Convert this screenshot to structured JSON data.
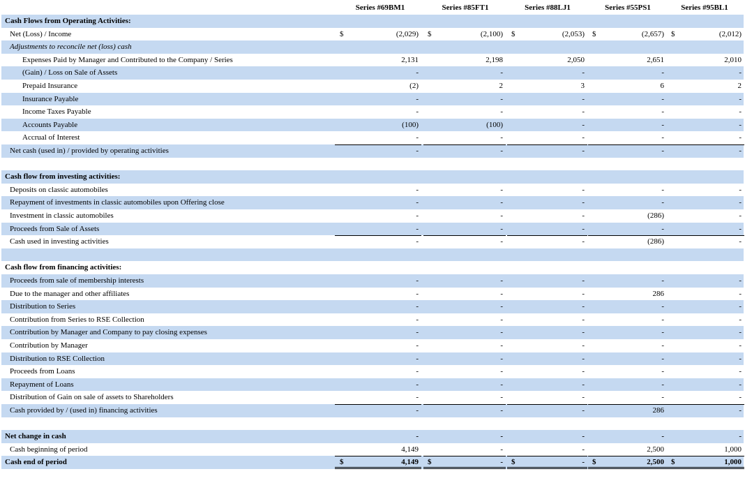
{
  "headers": [
    "Series #69BM1",
    "Series #85FT1",
    "Series #88LJ1",
    "Series #55PS1",
    "Series #95BL1"
  ],
  "rows": [
    {
      "label": "Cash Flows from Operating Activities:",
      "style": "bold"
    },
    {
      "label": "Net (Loss) / Income",
      "symbols": [
        "$",
        "$",
        "$",
        "$",
        "$"
      ],
      "values": [
        "(2,029)",
        "(2,100)",
        "(2,053)",
        "(2,657)",
        "(2,012)"
      ]
    },
    {
      "label": "Adjustments to reconcile net (loss) cash",
      "style": "italic"
    },
    {
      "label": "Expenses Paid by Manager and Contributed to the Company / Series",
      "indent": true,
      "values": [
        "2,131",
        "2,198",
        "2,050",
        "2,651",
        "2,010"
      ]
    },
    {
      "label": "(Gain) / Loss on Sale of Assets",
      "indent": true,
      "values": [
        "-",
        "-",
        "-",
        "-",
        "-"
      ]
    },
    {
      "label": "Prepaid Insurance",
      "indent": true,
      "values": [
        "(2)",
        "2",
        "3",
        "6",
        "2"
      ]
    },
    {
      "label": "Insurance Payable",
      "indent": true,
      "values": [
        "-",
        "-",
        "-",
        "-",
        "-"
      ]
    },
    {
      "label": "Income Taxes Payable",
      "indent": true,
      "values": [
        "-",
        "-",
        "-",
        "-",
        "-"
      ]
    },
    {
      "label": "Accounts Payable",
      "indent": true,
      "values": [
        "(100)",
        "(100)",
        "-",
        "-",
        "-"
      ]
    },
    {
      "label": "Accrual of Interest",
      "indent": true,
      "values": [
        "-",
        "-",
        "-",
        "-",
        "-"
      ]
    },
    {
      "label": "Net cash (used in) / provided by operating activities",
      "total": true,
      "values": [
        "-",
        "-",
        "-",
        "-",
        "-"
      ]
    },
    {},
    {
      "label": "Cash flow from investing activities:",
      "style": "bold"
    },
    {
      "label": "Deposits on classic automobiles",
      "values": [
        "-",
        "-",
        "-",
        "-",
        "-"
      ]
    },
    {
      "label": "Repayment of investments in classic automobiles upon Offering close",
      "values": [
        "-",
        "-",
        "-",
        "-",
        "-"
      ]
    },
    {
      "label": "Investment in classic automobiles",
      "values": [
        "-",
        "-",
        "-",
        "(286)",
        "-"
      ]
    },
    {
      "label": "Proceeds from Sale of Assets",
      "values": [
        "-",
        "-",
        "-",
        "-",
        "-"
      ]
    },
    {
      "label": "Cash used in investing activities",
      "total": true,
      "values": [
        "-",
        "-",
        "-",
        "(286)",
        "-"
      ]
    },
    {},
    {
      "label": "Cash flow from financing activities:",
      "style": "bold"
    },
    {
      "label": "Proceeds from sale of membership interests",
      "values": [
        "-",
        "-",
        "-",
        "-",
        "-"
      ]
    },
    {
      "label": "Due to the manager and other affiliates",
      "values": [
        "-",
        "-",
        "-",
        "286",
        "-"
      ]
    },
    {
      "label": "Distribution to Series",
      "values": [
        "-",
        "-",
        "-",
        "-",
        "-"
      ]
    },
    {
      "label": "Contribution from Series to RSE Collection",
      "values": [
        "-",
        "-",
        "-",
        "-",
        "-"
      ]
    },
    {
      "label": "Contribution by Manager and Company to pay closing expenses",
      "values": [
        "-",
        "-",
        "-",
        "-",
        "-"
      ]
    },
    {
      "label": "Contribution by Manager",
      "values": [
        "-",
        "-",
        "-",
        "-",
        "-"
      ]
    },
    {
      "label": "Distribution to RSE Collection",
      "values": [
        "-",
        "-",
        "-",
        "-",
        "-"
      ]
    },
    {
      "label": "Proceeds from Loans",
      "values": [
        "-",
        "-",
        "-",
        "-",
        "-"
      ]
    },
    {
      "label": "Repayment of Loans",
      "values": [
        "-",
        "-",
        "-",
        "-",
        "-"
      ]
    },
    {
      "label": "Distribution of Gain on sale of assets to Shareholders",
      "values": [
        "-",
        "-",
        "-",
        "-",
        "-"
      ]
    },
    {
      "label": "Cash provided by / (used in) financing activities",
      "total": true,
      "values": [
        "-",
        "-",
        "-",
        "286",
        "-"
      ]
    },
    {},
    {
      "label": "Net change in cash",
      "style": "bold",
      "values": [
        "-",
        "-",
        "-",
        "-",
        "-"
      ]
    },
    {
      "label": "Cash beginning of period",
      "values": [
        "4,149",
        "-",
        "-",
        "2,500",
        "1,000"
      ]
    },
    {
      "label": "Cash end of period",
      "style": "bold",
      "total": true,
      "final": true,
      "symbols": [
        "$",
        "$",
        "$",
        "$",
        "$"
      ],
      "values": [
        "4,149",
        "-",
        "-",
        "2,500",
        "1,000"
      ]
    }
  ]
}
